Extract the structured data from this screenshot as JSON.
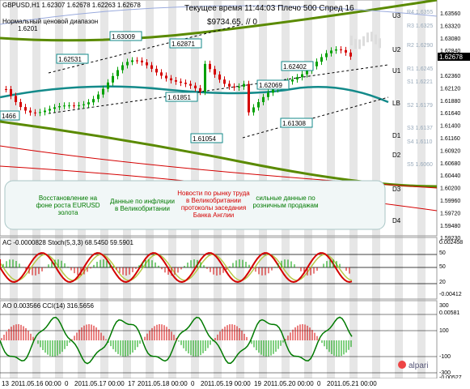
{
  "header": {
    "symbol_line": "GBPUSD,H1  1.62307 1.62678 1.62263 1.62678",
    "channel_title": "Нормальный ценовой диапазон",
    "channel_value": "1.6201",
    "server_info": "Текущее время 11:44:03 Плечо 500 Спред 16",
    "balance": "$9734.65",
    "balance_suffix": "// 0"
  },
  "price_axis": [
    "1.63560",
    "1.63320",
    "1.63080",
    "1.62840",
    "1.62678",
    "1.62360",
    "1.62120",
    "1.61880",
    "1.61640",
    "1.61400",
    "1.61160",
    "1.60920",
    "1.60680",
    "1.60440",
    "1.60200",
    "1.59960",
    "1.59720",
    "1.59480",
    "1.59230"
  ],
  "current_price": "1.62678",
  "price_labels": [
    "1.63009",
    "1.62871",
    "1.62531",
    "1.62402",
    "1.62069",
    "1.61851",
    "1.61308",
    "1.61054",
    "1466"
  ],
  "levels": {
    "left": [
      "U3",
      "U2",
      "U1",
      "LB",
      "D1",
      "D2",
      "D3",
      "D4"
    ],
    "right": [
      "R4 1.6355",
      "R3 1.6325",
      "R2 1.6290",
      "R1 1.6245",
      "S1 1.6221",
      "S2 1.6179",
      "S3 1.6137",
      "S4 1.6110",
      "S5 1.6060"
    ]
  },
  "annotations": [
    {
      "text": "Восстановление на фоне роста EURUSD золота",
      "color": "#007a00"
    },
    {
      "text": "Данные по инфляции в Великобритании",
      "color": "#007a00"
    },
    {
      "text": "Новости по рынку труда в Великобритании протоколы заседания Банка Англии",
      "color": "#d40000"
    },
    {
      "text": "сильные данные по розничным продажам",
      "color": "#007a00"
    }
  ],
  "stoch_panel": {
    "title": "AC -0.0000828  Stoch(5,3,3) 68.5450 59.5901",
    "axis": [
      "0.002458",
      "50",
      "50",
      "20",
      "-0.00412"
    ],
    "levels": [
      "80",
      "50",
      "20"
    ]
  },
  "cci_panel": {
    "title": "AO 0.003566  CCI(14) 316.5656",
    "axis": [
      "300",
      "0.00581",
      "100",
      "-100",
      "-300",
      "-0.00527"
    ]
  },
  "time_axis": [
    "13",
    "2011.05.16 00:00",
    "0",
    "2011.05.17 00:00",
    "17",
    "2011.05.18 00:00",
    "0",
    "2011.05.19 00:00",
    "19",
    "2011.05.20 00:00",
    "0",
    "2011.05.21 00:00"
  ],
  "watermark": "alpari",
  "colors": {
    "bull": "#00a000",
    "bear": "#d40000",
    "ma": "#138a8a",
    "ma_slow": "#5a8a00"
  }
}
